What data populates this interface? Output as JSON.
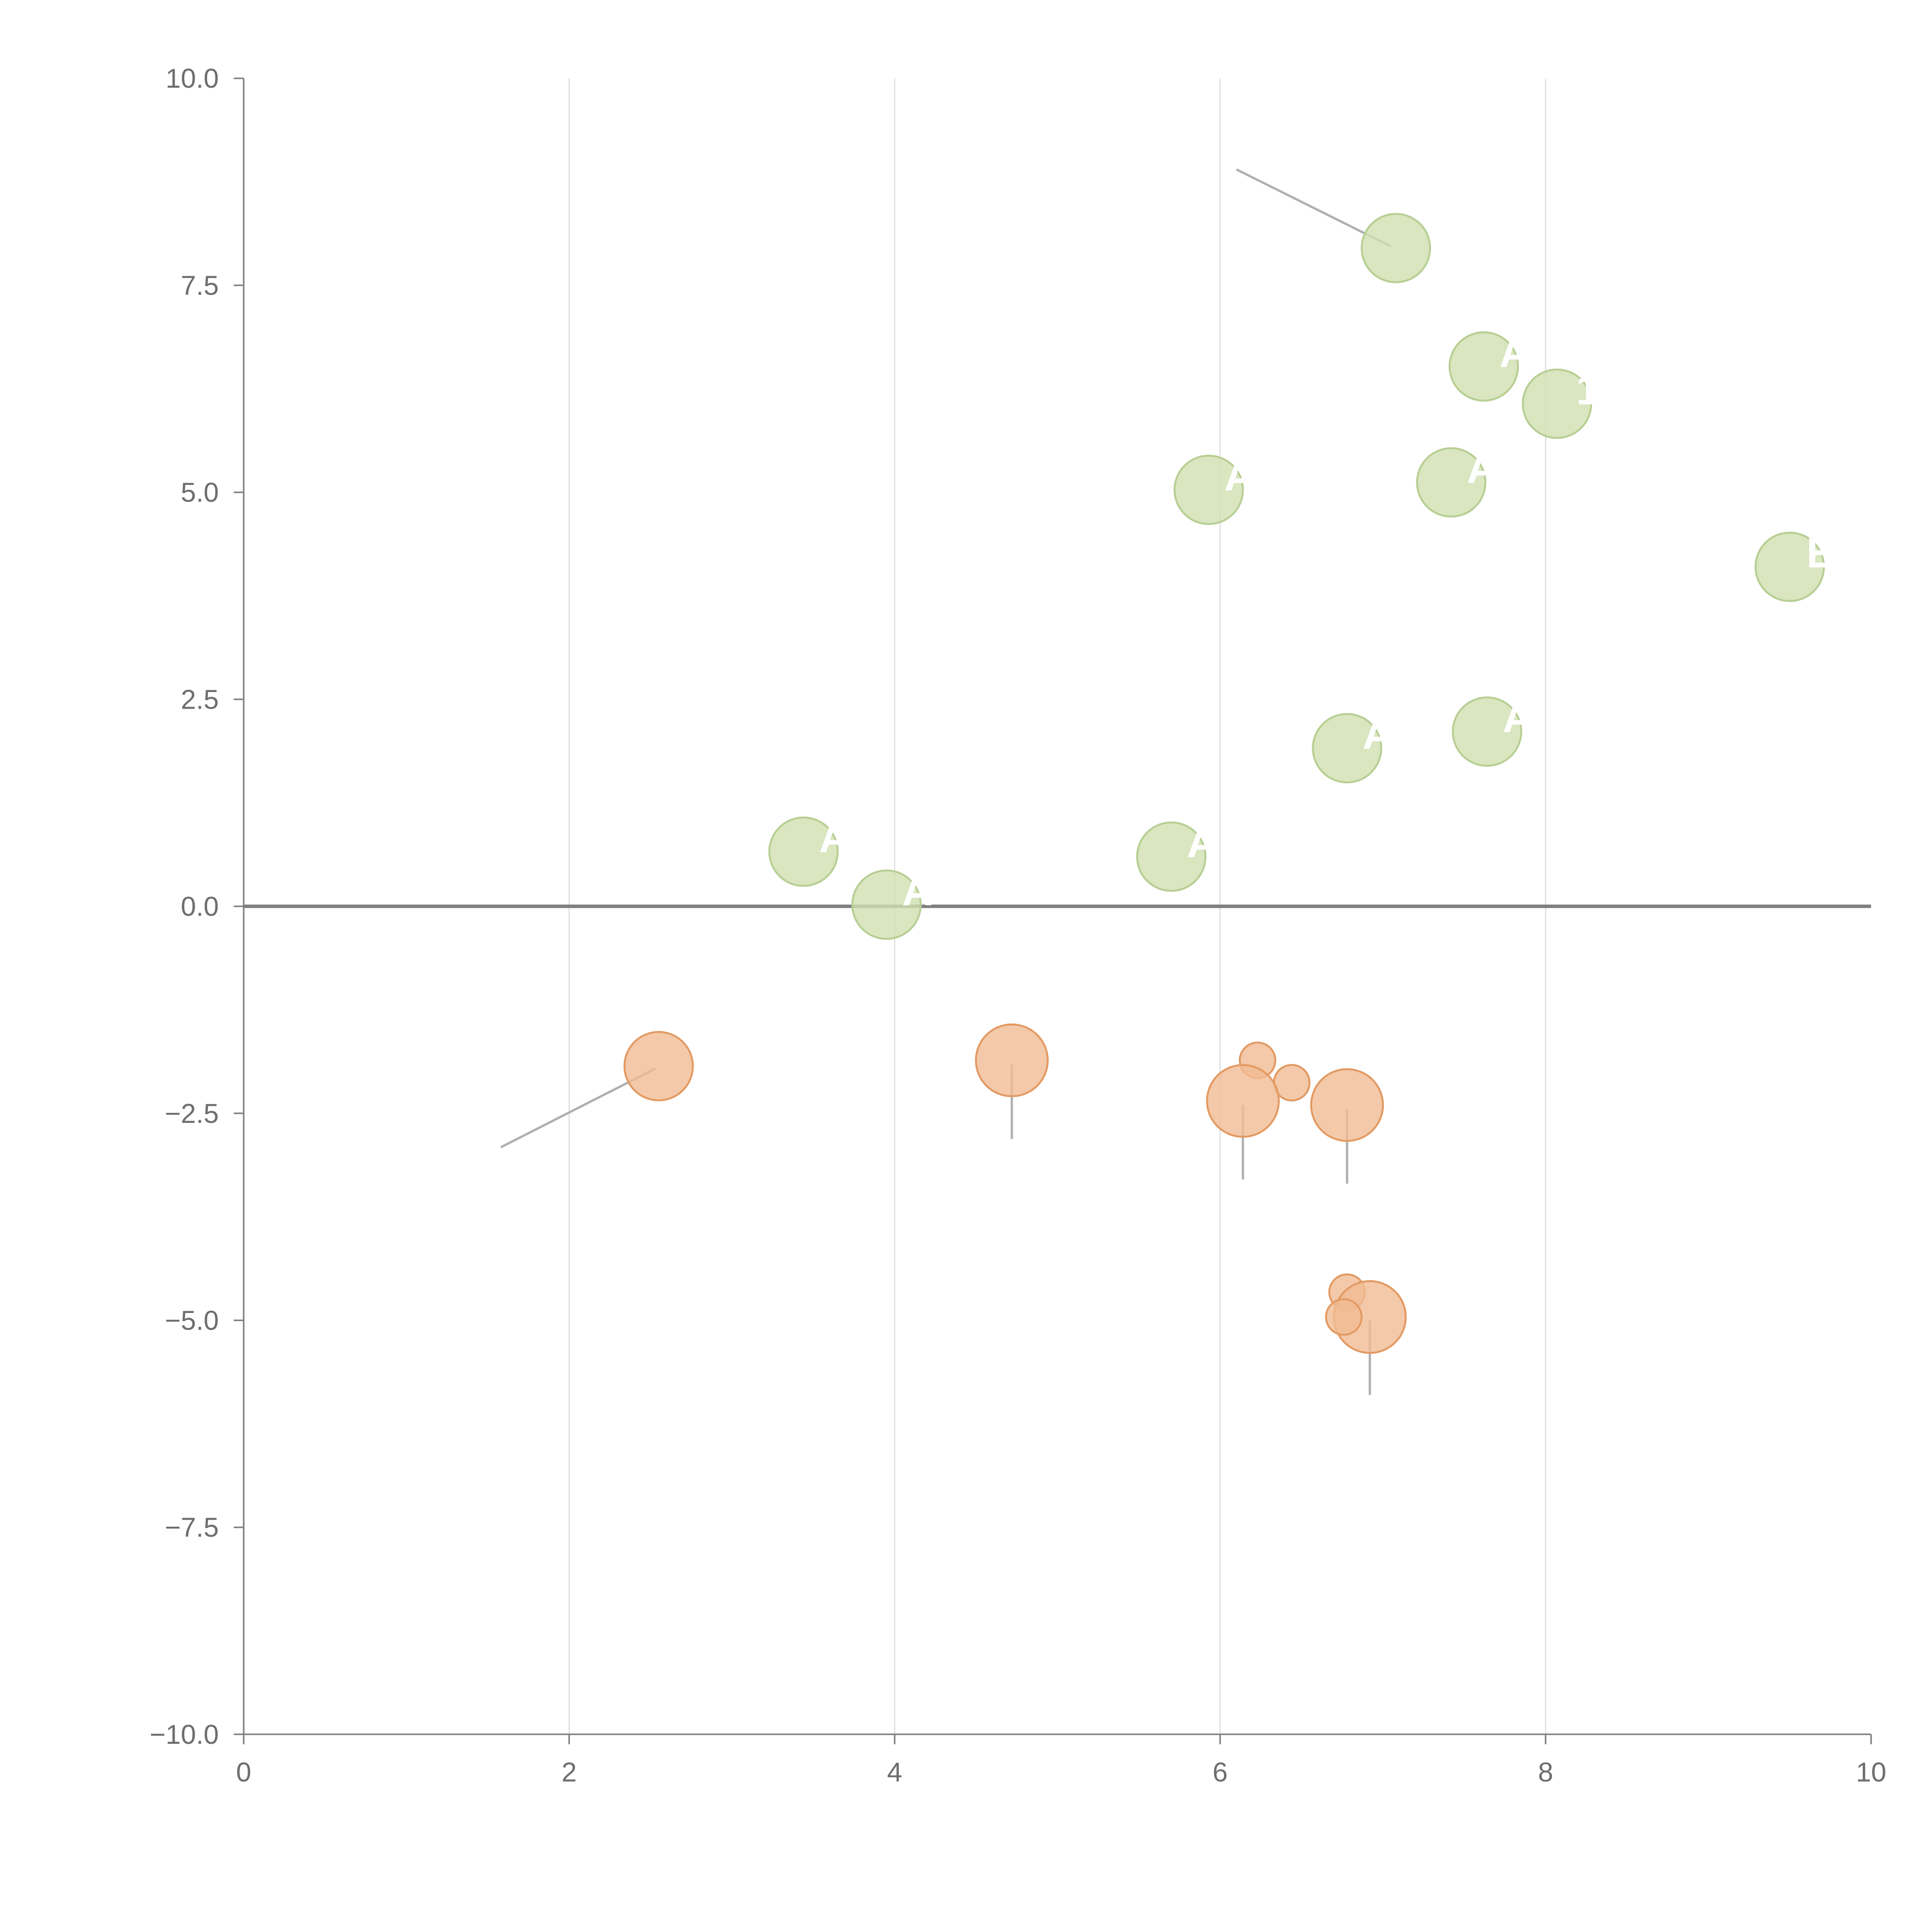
{
  "chart_data": {
    "type": "scatter",
    "title": "",
    "xlabel": "",
    "ylabel": "",
    "xlim": [
      0,
      10
    ],
    "ylim": [
      -10,
      10
    ],
    "x_ticks": [
      0,
      2,
      4,
      6,
      8,
      10
    ],
    "x_tick_labels": [
      "0",
      "2",
      "4",
      "6",
      "8",
      "10"
    ],
    "y_ticks": [
      10,
      7.5,
      5,
      2.5,
      0,
      -2.5,
      -5,
      -7.5,
      -10
    ],
    "y_tick_labels": [
      "10.0",
      "7.5",
      "5.0",
      "2.5",
      "0.0",
      "−2.5",
      "−5.0",
      "−7.5",
      "−10.0"
    ],
    "grid": "vertical",
    "reference_line_y": 0,
    "colors": {
      "positive_fill": "#cfe0b0",
      "positive_stroke": "#b7cf93",
      "negative_fill": "#f0bc93",
      "negative_stroke": "#e39a63",
      "axis": "#808080",
      "grid": "#dddddd",
      "leader": "#b0b0b0"
    },
    "series": [
      {
        "name": "positive",
        "points": [
          {
            "x": 7.08,
            "y": 7.95,
            "size": 1.0,
            "label": ""
          },
          {
            "x": 7.62,
            "y": 6.52,
            "size": 1.0,
            "label": "A"
          },
          {
            "x": 8.07,
            "y": 6.07,
            "size": 1.0,
            "label": "1"
          },
          {
            "x": 5.93,
            "y": 5.03,
            "size": 1.0,
            "label": "A"
          },
          {
            "x": 7.42,
            "y": 5.12,
            "size": 1.0,
            "label": "A"
          },
          {
            "x": 9.5,
            "y": 4.1,
            "size": 1.0,
            "label": "E"
          },
          {
            "x": 6.78,
            "y": 1.91,
            "size": 1.0,
            "label": "A"
          },
          {
            "x": 7.64,
            "y": 2.11,
            "size": 1.0,
            "label": "A"
          },
          {
            "x": 3.44,
            "y": 0.66,
            "size": 1.0,
            "label": "A"
          },
          {
            "x": 5.7,
            "y": 0.6,
            "size": 1.0,
            "label": "A"
          },
          {
            "x": 3.95,
            "y": 0.02,
            "size": 1.0,
            "label": "A"
          }
        ]
      },
      {
        "name": "negative",
        "points": [
          {
            "x": 2.55,
            "y": -1.93,
            "size": 1.0,
            "label": ""
          },
          {
            "x": 4.72,
            "y": -1.86,
            "size": 1.05,
            "label": ""
          },
          {
            "x": 6.23,
            "y": -1.86,
            "size": 0.5,
            "label": ""
          },
          {
            "x": 6.44,
            "y": -2.13,
            "size": 0.5,
            "label": ""
          },
          {
            "x": 6.14,
            "y": -2.35,
            "size": 1.05,
            "label": ""
          },
          {
            "x": 6.78,
            "y": -2.4,
            "size": 1.05,
            "label": ""
          },
          {
            "x": 6.78,
            "y": -4.66,
            "size": 0.5,
            "label": ""
          },
          {
            "x": 6.92,
            "y": -4.96,
            "size": 1.05,
            "label": ""
          },
          {
            "x": 6.76,
            "y": -4.96,
            "size": 0.5,
            "label": ""
          }
        ]
      }
    ],
    "leader_lines": [
      {
        "from": [
          6.1,
          8.9
        ],
        "to": [
          7.05,
          7.97
        ]
      },
      {
        "from": [
          1.58,
          -2.91
        ],
        "to": [
          2.53,
          -1.96
        ]
      },
      {
        "from": [
          4.72,
          -1.91
        ],
        "to": [
          4.72,
          -2.81
        ]
      },
      {
        "from": [
          6.14,
          -2.4
        ],
        "to": [
          6.14,
          -3.3
        ]
      },
      {
        "from": [
          6.78,
          -2.45
        ],
        "to": [
          6.78,
          -3.35
        ]
      },
      {
        "from": [
          6.92,
          -5.0
        ],
        "to": [
          6.92,
          -5.9
        ]
      }
    ]
  }
}
